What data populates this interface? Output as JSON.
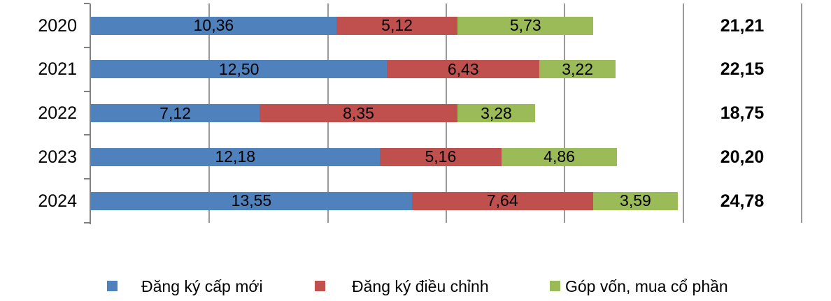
{
  "chart_data": {
    "type": "bar",
    "orientation": "horizontal",
    "stacked": true,
    "title": "",
    "xlabel": "",
    "ylabel": "",
    "categories": [
      "2020",
      "2021",
      "2022",
      "2023",
      "2024"
    ],
    "series": [
      {
        "name": "Đăng ký cấp mới",
        "color": "#4F81BD",
        "values": [
          10.36,
          12.5,
          7.12,
          12.18,
          13.55
        ],
        "labels": [
          "10,36",
          "12,50",
          "7,12",
          "12,18",
          "13,55"
        ]
      },
      {
        "name": "Đăng ký điều chỉnh",
        "color": "#C0504D",
        "values": [
          5.12,
          6.43,
          8.35,
          5.16,
          7.64
        ],
        "labels": [
          "5,12",
          "6,43",
          "8,35",
          "5,16",
          "7,64"
        ]
      },
      {
        "name": "Góp vốn, mua cổ phần",
        "color": "#9BBB59",
        "values": [
          5.73,
          3.22,
          3.28,
          4.86,
          3.59
        ],
        "labels": [
          "5,73",
          "3,22",
          "3,28",
          "4,86",
          "3,59"
        ]
      }
    ],
    "totals": [
      "21,21",
      "22,15",
      "18,75",
      "20,20",
      "24,78"
    ],
    "xlim": [
      0,
      30
    ],
    "grid_step": 5,
    "grid": true,
    "legend_position": "bottom",
    "decimal_separator": ","
  },
  "colors": {
    "series_blue": "#4F81BD",
    "series_red": "#C0504D",
    "series_green": "#9BBB59",
    "gridline": "#999999",
    "axis": "#808080",
    "text": "#000000",
    "background": "#FFFFFF"
  },
  "legend": {
    "items": [
      {
        "label": "Đăng ký cấp mới",
        "color": "#4F81BD"
      },
      {
        "label": "Đăng ký điều chỉnh",
        "color": "#C0504D"
      },
      {
        "label": "Góp vốn, mua cổ phần",
        "color": "#9BBB59"
      }
    ]
  }
}
